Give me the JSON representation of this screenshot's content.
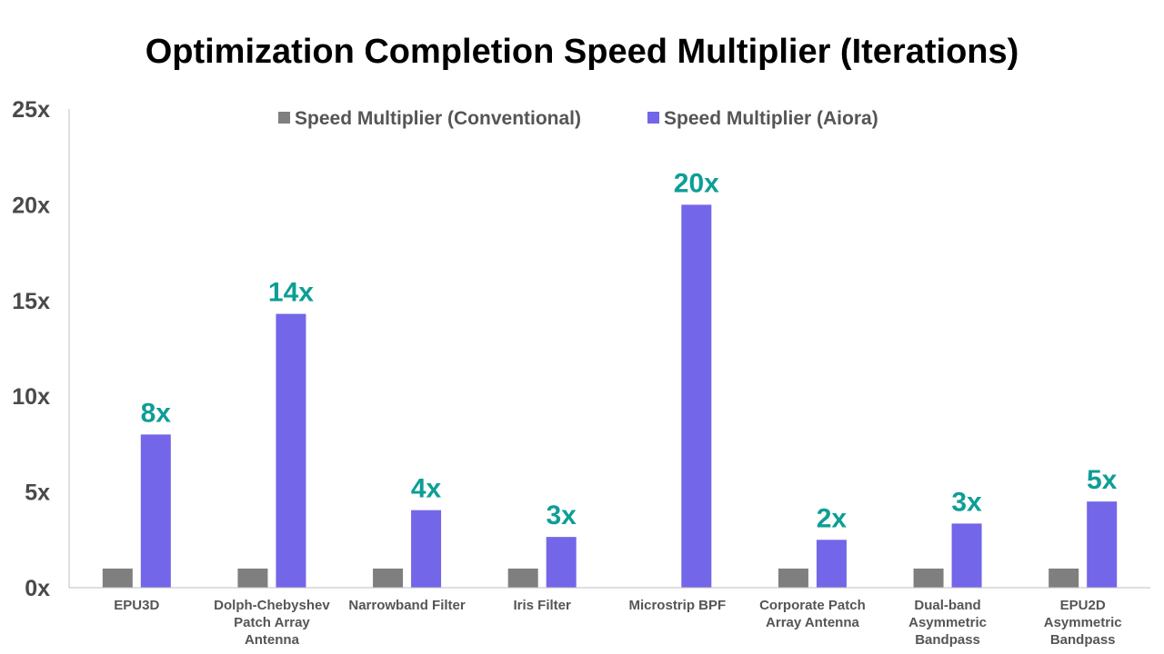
{
  "chart_data": {
    "type": "bar",
    "title": "Optimization Completion Speed Multiplier (Iterations)",
    "categories": [
      [
        "EPU3D"
      ],
      [
        "Dolph-Chebyshev",
        "Patch Array",
        "Antenna"
      ],
      [
        "Narrowband Filter"
      ],
      [
        "Iris Filter"
      ],
      [
        "Microstrip BPF"
      ],
      [
        "Corporate Patch",
        "Array Antenna"
      ],
      [
        "Dual-band",
        "Asymmetric",
        "Bandpass"
      ],
      [
        "EPU2D",
        "Asymmetric",
        "Bandpass"
      ]
    ],
    "series": [
      {
        "name": "Speed Multiplier (Conventional)",
        "color": "#7f7f7f",
        "values": [
          1,
          1,
          1,
          1,
          null,
          1,
          1,
          1
        ]
      },
      {
        "name": "Speed Multiplier (Aiora)",
        "color": "#7366e8",
        "values": [
          8,
          14.3,
          4.05,
          2.65,
          20,
          2.5,
          3.35,
          4.5
        ],
        "data_labels": [
          "8x",
          "14x",
          "4x",
          "3x",
          "20x",
          "2x",
          "3x",
          "5x"
        ]
      }
    ],
    "label_color": "#0d9e96",
    "ylim": [
      0,
      25
    ],
    "yticks": [
      0,
      5,
      10,
      15,
      20,
      25
    ],
    "ytick_labels": [
      "0x",
      "5x",
      "10x",
      "15x",
      "20x",
      "25x"
    ],
    "xlabel": "",
    "ylabel": "",
    "legend_position": "top-center",
    "grid": false
  }
}
